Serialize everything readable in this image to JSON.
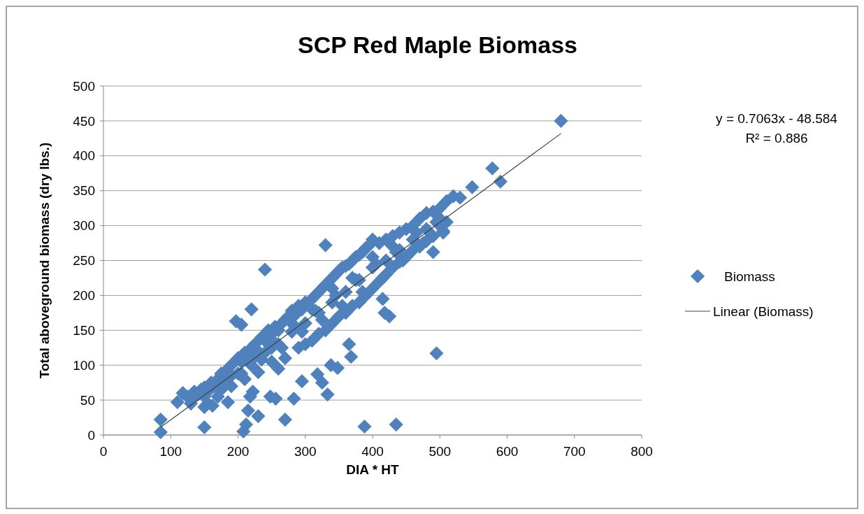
{
  "chart_data": {
    "type": "scatter",
    "title": "SCP Red Maple Biomass",
    "xlabel": "DIA * HT",
    "ylabel": "Total aboveground biomass (dry lbs.)",
    "xlim": [
      0,
      800
    ],
    "xticks": [
      0,
      100,
      200,
      300,
      400,
      500,
      600,
      700,
      800
    ],
    "ylim": [
      0,
      500
    ],
    "yticks": [
      0,
      50,
      100,
      150,
      200,
      250,
      300,
      350,
      400,
      450,
      500
    ],
    "grid": "y",
    "legend": "right",
    "marker": "diamond",
    "annotations": [
      "y = 0.7063x - 48.584",
      "R² = 0.886"
    ],
    "series": [
      {
        "name": "Biomass",
        "color": "#4f81bd",
        "x": [
          225,
          255,
          285,
          315,
          345,
          375,
          405,
          435,
          465,
          495,
          175,
          205,
          235,
          265,
          295,
          325,
          355,
          385,
          415,
          445,
          475,
          505,
          190,
          250,
          280,
          310,
          340,
          370,
          400,
          430,
          85,
          85,
          150,
          208,
          212,
          215,
          218,
          222,
          230,
          270,
          283,
          248,
          256,
          295,
          318,
          325,
          333,
          338,
          348,
          365,
          368,
          415,
          418,
          425,
          388,
          435,
          495,
          330,
          240,
          197,
          205,
          220,
          490,
          505,
          578,
          590,
          548,
          680,
          185,
          155,
          162,
          110,
          118,
          125,
          130,
          135,
          140,
          145,
          150,
          155,
          160,
          165,
          170,
          175,
          180,
          185,
          190,
          200,
          205,
          210,
          215,
          220,
          225,
          230,
          235,
          240,
          245,
          250,
          255,
          260,
          265,
          270,
          275,
          280,
          285,
          290,
          295,
          300,
          310,
          315,
          320,
          325,
          330,
          335,
          340,
          345,
          350,
          355,
          360,
          365,
          370,
          375,
          380,
          385,
          390,
          395,
          400,
          410,
          420,
          430,
          440,
          450,
          460,
          470,
          480,
          490,
          500,
          510,
          520,
          530,
          130,
          150,
          170,
          190,
          210,
          230,
          250,
          260,
          270,
          290,
          300,
          310,
          320,
          330,
          340,
          350,
          360,
          370,
          380,
          390,
          400,
          410,
          420,
          430,
          440,
          450,
          460,
          470,
          480,
          490,
          500,
          510,
          150,
          200,
          220,
          240,
          260,
          280,
          300,
          320,
          340,
          360,
          380,
          400,
          420,
          440,
          460,
          480,
          500
        ],
        "values": [
          112,
          132,
          155,
          178,
          200,
          222,
          245,
          262,
          290,
          305,
          65,
          88,
          108,
          125,
          148,
          165,
          185,
          205,
          225,
          250,
          275,
          290,
          85,
          125,
          160,
          180,
          210,
          225,
          255,
          270,
          22,
          4,
          11,
          5,
          15,
          35,
          55,
          62,
          27,
          22,
          52,
          55,
          52,
          77,
          87,
          75,
          58,
          100,
          96,
          130,
          112,
          195,
          175,
          170,
          12,
          15,
          117,
          272,
          237,
          163,
          158,
          180,
          262,
          292,
          382,
          363,
          355,
          450,
          47,
          45,
          42,
          47,
          60,
          55,
          50,
          62,
          58,
          65,
          68,
          62,
          75,
          70,
          80,
          88,
          78,
          95,
          100,
          110,
          105,
          118,
          112,
          125,
          130,
          120,
          140,
          135,
          150,
          145,
          155,
          150,
          160,
          165,
          170,
          178,
          172,
          185,
          180,
          190,
          195,
          200,
          205,
          210,
          215,
          220,
          225,
          230,
          235,
          240,
          242,
          245,
          250,
          255,
          258,
          262,
          268,
          272,
          280,
          275,
          280,
          285,
          290,
          295,
          300,
          310,
          318,
          320,
          325,
          335,
          342,
          340,
          45,
          40,
          55,
          70,
          80,
          90,
          105,
          95,
          110,
          125,
          130,
          135,
          145,
          150,
          160,
          170,
          175,
          185,
          190,
          200,
          210,
          220,
          230,
          240,
          248,
          255,
          265,
          270,
          278,
          285,
          300,
          305,
          55,
          88,
          100,
          118,
          130,
          148,
          160,
          175,
          190,
          205,
          222,
          240,
          250,
          265,
          280,
          295,
          310
        ]
      },
      {
        "name": "Linear (Biomass)",
        "type": "line",
        "color": "#404040",
        "marker": "none",
        "x": [
          85,
          680
        ],
        "values": [
          11,
          432
        ]
      }
    ]
  }
}
